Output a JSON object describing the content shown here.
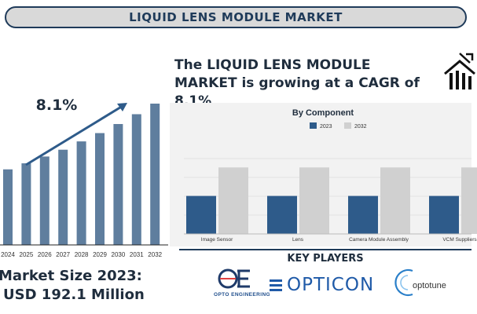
{
  "header": {
    "title": "LIQUID LENS MODULE MARKET"
  },
  "headline": {
    "text": "The LIQUID LENS MODULE MARKET is growing at a CAGR of 8.1%"
  },
  "icons": {
    "house": "house-growth-icon"
  },
  "market_size": {
    "label": "Market Size 2023:",
    "value": "USD 192.1 Million"
  },
  "key_players": {
    "title": "KEY PLAYERS",
    "logos": [
      {
        "name": "OPTO ENGINEERING"
      },
      {
        "name": "OPTICON"
      },
      {
        "name": "optotune"
      }
    ]
  },
  "colors": {
    "primary": "#2e5b8a",
    "bar_left": "#5f7e9e",
    "bar_2032": "#d0d0d0",
    "accent": "#1f3b5a"
  },
  "chart_data": [
    {
      "type": "bar",
      "annotation": "8.1%",
      "categories": [
        "2024",
        "2025",
        "2026",
        "2027",
        "2028",
        "2029",
        "2030",
        "2031",
        "2032"
      ],
      "values": [
        1.0,
        1.08,
        1.17,
        1.26,
        1.37,
        1.48,
        1.6,
        1.73,
        1.87
      ]
    },
    {
      "type": "bar",
      "title": "By Component",
      "categories": [
        "Image Sensor",
        "Lens",
        "Camera Module Assembly",
        "VCM Suppliers"
      ],
      "series": [
        {
          "name": "2023",
          "values": [
            40,
            40,
            40,
            40
          ],
          "color": "#2e5b8a"
        },
        {
          "name": "2032",
          "values": [
            70,
            70,
            70,
            70
          ],
          "color": "#d0d0d0"
        }
      ],
      "ylim": [
        0,
        100
      ],
      "legend": "top"
    }
  ]
}
